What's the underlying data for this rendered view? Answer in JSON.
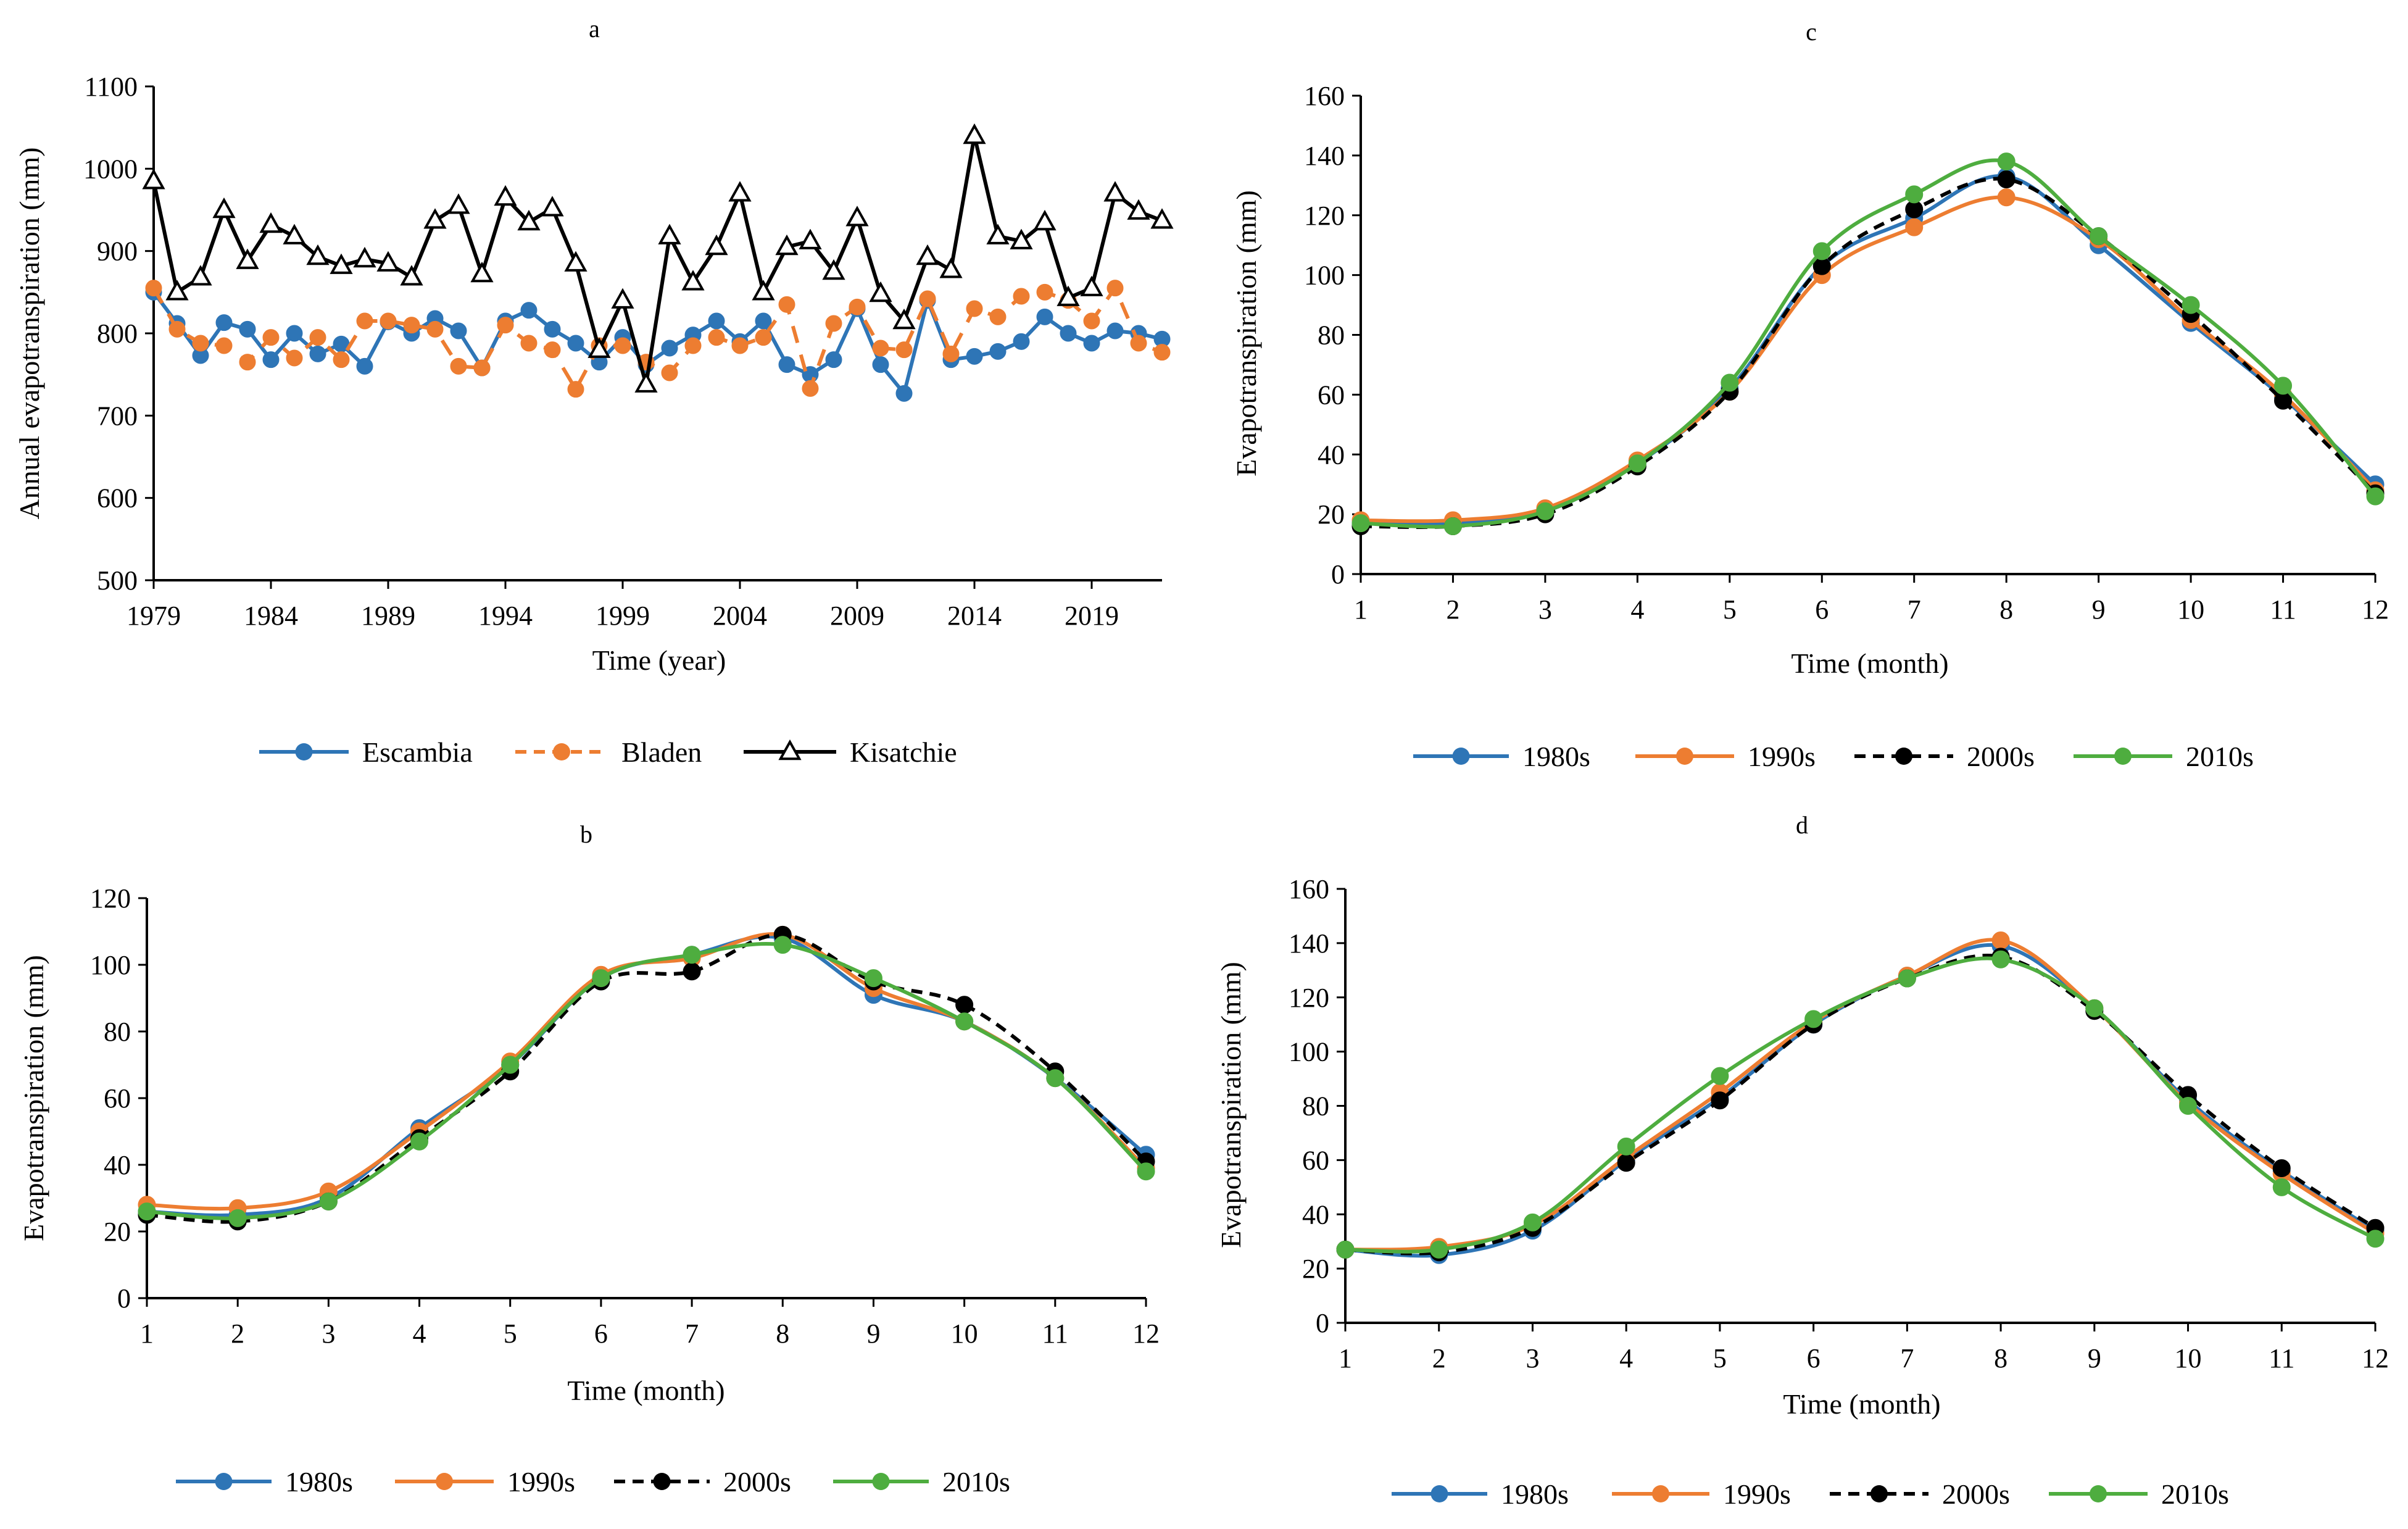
{
  "chart_data": [
    {
      "panel": "a",
      "type": "line",
      "title": "a",
      "xlabel": "Time (year)",
      "ylabel": "Annual evapotranspiration (mm)",
      "xlim": [
        1979,
        2022
      ],
      "ylim": [
        500,
        1100
      ],
      "xticks": [
        1979,
        1984,
        1989,
        1994,
        1999,
        2004,
        2009,
        2014,
        2019
      ],
      "yticks": [
        500,
        600,
        700,
        800,
        900,
        1000,
        1100
      ],
      "x": [
        1979,
        1980,
        1981,
        1982,
        1983,
        1984,
        1985,
        1986,
        1987,
        1988,
        1989,
        1990,
        1991,
        1992,
        1993,
        1994,
        1995,
        1996,
        1997,
        1998,
        1999,
        2000,
        2001,
        2002,
        2003,
        2004,
        2005,
        2006,
        2007,
        2008,
        2009,
        2010,
        2011,
        2012,
        2013,
        2014,
        2015,
        2016,
        2017,
        2018,
        2019,
        2020,
        2021,
        2022
      ],
      "legend_position": "bottom-center",
      "series": [
        {
          "name": "Escambia",
          "color": "#2E75B6",
          "dash": "solid",
          "marker": "circle",
          "values": [
            850,
            812,
            773,
            813,
            805,
            768,
            800,
            775,
            787,
            760,
            814,
            800,
            818,
            803,
            758,
            815,
            828,
            805,
            788,
            765,
            795,
            762,
            782,
            798,
            815,
            790,
            815,
            762,
            750,
            768,
            830,
            762,
            727,
            840,
            768,
            772,
            778,
            790,
            820,
            800,
            788,
            803,
            800,
            793
          ]
        },
        {
          "name": "Bladen",
          "color": "#ED7D31",
          "dash": "dashed",
          "marker": "circle",
          "values": [
            855,
            805,
            788,
            785,
            765,
            795,
            770,
            795,
            768,
            815,
            815,
            810,
            805,
            760,
            758,
            810,
            788,
            780,
            732,
            785,
            785,
            765,
            752,
            785,
            795,
            785,
            795,
            835,
            733,
            812,
            832,
            782,
            780,
            842,
            775,
            830,
            820,
            845,
            850,
            840,
            815,
            855,
            788,
            777
          ]
        },
        {
          "name": "Kisatchie",
          "color": "#000000",
          "dash": "solid",
          "marker": "triangle",
          "values": [
            985,
            850,
            868,
            950,
            888,
            932,
            918,
            893,
            882,
            890,
            885,
            868,
            937,
            955,
            872,
            965,
            935,
            952,
            885,
            780,
            840,
            738,
            918,
            862,
            905,
            970,
            850,
            905,
            912,
            875,
            940,
            848,
            815,
            893,
            877,
            1040,
            918,
            912,
            935,
            843,
            855,
            970,
            948,
            937
          ]
        }
      ]
    },
    {
      "panel": "b",
      "type": "line",
      "title": "b",
      "xlabel": "Time (month)",
      "ylabel": "Evapotranspiration (mm)",
      "xlim": [
        1,
        12
      ],
      "ylim": [
        0,
        120
      ],
      "xticks": [
        1,
        2,
        3,
        4,
        5,
        6,
        7,
        8,
        9,
        10,
        11,
        12
      ],
      "yticks": [
        0,
        20,
        40,
        60,
        80,
        100,
        120
      ],
      "x": [
        1,
        2,
        3,
        4,
        5,
        6,
        7,
        8,
        9,
        10,
        11,
        12
      ],
      "legend_position": "bottom-center",
      "series": [
        {
          "name": "1980s",
          "color": "#2E75B6",
          "dash": "solid",
          "marker": "circle",
          "values": [
            26,
            25,
            30,
            51,
            70,
            96,
            103,
            108,
            91,
            83,
            66,
            43
          ]
        },
        {
          "name": "1990s",
          "color": "#ED7D31",
          "dash": "solid",
          "marker": "circle",
          "values": [
            28,
            27,
            32,
            50,
            71,
            97,
            102,
            109,
            93,
            83,
            66,
            39
          ]
        },
        {
          "name": "2000s",
          "color": "#000000",
          "dash": "dashed",
          "marker": "circle",
          "values": [
            25,
            23,
            29,
            48,
            68,
            95,
            98,
            109,
            95,
            88,
            68,
            41
          ]
        },
        {
          "name": "2010s",
          "color": "#4EAD3F",
          "dash": "solid",
          "marker": "circle",
          "values": [
            26,
            24,
            29,
            47,
            70,
            96,
            103,
            106,
            96,
            83,
            66,
            38
          ]
        }
      ]
    },
    {
      "panel": "c",
      "type": "line",
      "title": "c",
      "xlabel": "Time (month)",
      "ylabel": "Evapotranspiration (mm)",
      "xlim": [
        1,
        12
      ],
      "ylim": [
        0,
        160
      ],
      "xticks": [
        1,
        2,
        3,
        4,
        5,
        6,
        7,
        8,
        9,
        10,
        11,
        12
      ],
      "yticks": [
        0,
        20,
        40,
        60,
        80,
        100,
        120,
        140,
        160
      ],
      "x": [
        1,
        2,
        3,
        4,
        5,
        6,
        7,
        8,
        9,
        10,
        11,
        12
      ],
      "legend_position": "bottom-center",
      "series": [
        {
          "name": "1980s",
          "color": "#2E75B6",
          "dash": "solid",
          "marker": "circle",
          "values": [
            17,
            17,
            21,
            37,
            62,
            103,
            119,
            133,
            110,
            84,
            59,
            30
          ]
        },
        {
          "name": "1990s",
          "color": "#ED7D31",
          "dash": "solid",
          "marker": "circle",
          "values": [
            18,
            18,
            22,
            38,
            61,
            100,
            116,
            126,
            112,
            85,
            60,
            28
          ]
        },
        {
          "name": "2000s",
          "color": "#000000",
          "dash": "dashed",
          "marker": "circle",
          "values": [
            16,
            16,
            20,
            36,
            61,
            103,
            122,
            132,
            113,
            87,
            58,
            27
          ]
        },
        {
          "name": "2010s",
          "color": "#4EAD3F",
          "dash": "solid",
          "marker": "circle",
          "values": [
            17,
            16,
            21,
            37,
            64,
            108,
            127,
            138,
            113,
            90,
            63,
            26
          ]
        }
      ]
    },
    {
      "panel": "d",
      "type": "line",
      "title": "d",
      "xlabel": "Time (month)",
      "ylabel": "Evapotranspiration (mm)",
      "xlim": [
        1,
        12
      ],
      "ylim": [
        0,
        160
      ],
      "xticks": [
        1,
        2,
        3,
        4,
        5,
        6,
        7,
        8,
        9,
        10,
        11,
        12
      ],
      "yticks": [
        0,
        20,
        40,
        60,
        80,
        100,
        120,
        140,
        160
      ],
      "x": [
        1,
        2,
        3,
        4,
        5,
        6,
        7,
        8,
        9,
        10,
        11,
        12
      ],
      "legend_position": "bottom-center",
      "series": [
        {
          "name": "1980s",
          "color": "#2E75B6",
          "dash": "solid",
          "marker": "circle",
          "values": [
            27,
            25,
            34,
            60,
            83,
            110,
            128,
            139,
            116,
            82,
            56,
            34
          ]
        },
        {
          "name": "1990s",
          "color": "#ED7D31",
          "dash": "solid",
          "marker": "circle",
          "values": [
            27,
            28,
            36,
            61,
            85,
            111,
            128,
            141,
            116,
            81,
            55,
            33
          ]
        },
        {
          "name": "2000s",
          "color": "#000000",
          "dash": "dashed",
          "marker": "circle",
          "values": [
            27,
            26,
            35,
            59,
            82,
            110,
            127,
            135,
            115,
            84,
            57,
            35
          ]
        },
        {
          "name": "2010s",
          "color": "#4EAD3F",
          "dash": "solid",
          "marker": "circle",
          "values": [
            27,
            27,
            37,
            65,
            91,
            112,
            127,
            134,
            116,
            80,
            50,
            31
          ]
        }
      ]
    }
  ]
}
